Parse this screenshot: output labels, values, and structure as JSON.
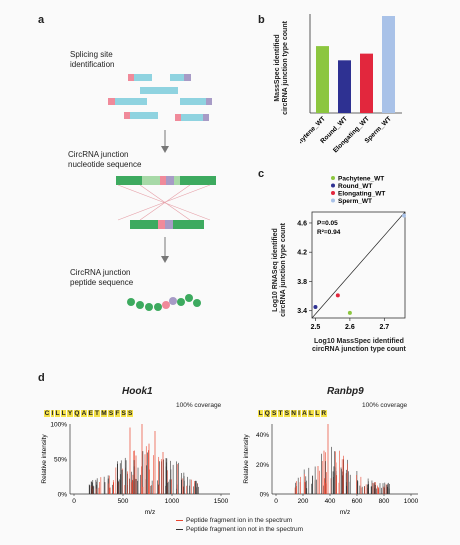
{
  "panels": {
    "a": {
      "label": "a",
      "steps": [
        "Splicing site\nidentification",
        "CircRNA junction\nnucleotide sequence",
        "CircRNA junction\npeptide sequence"
      ]
    },
    "b": {
      "label": "b",
      "chart_data": {
        "type": "bar",
        "ylabel": "MassSpec identified\ncircRNA junction type count",
        "categories": [
          "Pachytene_WT",
          "Round_WT",
          "Elongating_WT",
          "Sperm_WT"
        ],
        "values": [
          400,
          315,
          355,
          580
        ],
        "colors": [
          "#8cc63f",
          "#2e3192",
          "#e2273d",
          "#a9c2e8"
        ]
      }
    },
    "c": {
      "label": "c",
      "chart_data": {
        "type": "scatter",
        "xlabel": "Log10 MassSpec identified\ncircRNA junction type count",
        "ylabel": "Log10 RNASeq identified\ncircRNA junction type count",
        "xticks": [
          "2.5",
          "2.6",
          "2.7"
        ],
        "yticks": [
          "3.4",
          "3.8",
          "4.2",
          "4.6"
        ],
        "xlim": [
          2.49,
          2.76
        ],
        "ylim": [
          3.3,
          4.75
        ],
        "legend": [
          "Pachytene_WT",
          "Round_WT",
          "Elongating_WT",
          "Sperm_WT"
        ],
        "colors": [
          "#8cc63f",
          "#2e3192",
          "#e2273d",
          "#a9c2e8"
        ],
        "points": [
          {
            "x": 2.6,
            "y": 3.37
          },
          {
            "x": 2.5,
            "y": 3.45
          },
          {
            "x": 2.565,
            "y": 3.61
          },
          {
            "x": 2.76,
            "y": 4.7
          }
        ],
        "stats": [
          "P=0.05",
          "R²=0.94"
        ]
      }
    },
    "d": {
      "label": "d",
      "spectra": [
        {
          "title": "Hook1",
          "sequence": [
            "C",
            "I",
            "L",
            "L",
            "Y",
            "Q",
            "A",
            "E",
            "T",
            "M",
            "S",
            "F",
            "S",
            "S"
          ],
          "coverage": "100% coverage",
          "ylabel": "Relative intensity",
          "yticks": [
            "0%",
            "50%",
            "100%"
          ],
          "xticks": [
            "0",
            "500",
            "1000",
            "1500"
          ],
          "xlabel": "m/z"
        },
        {
          "title": "Ranbp9",
          "sequence": [
            "L",
            "Q",
            "S",
            "T",
            "S",
            "N",
            "I",
            "A",
            "L",
            "L",
            "R"
          ],
          "coverage": "100% coverage",
          "ylabel": "Relative intensity",
          "yticks": [
            "0%",
            "20%",
            "40%"
          ],
          "xticks": [
            "0",
            "200",
            "400",
            "600",
            "800",
            "1000"
          ],
          "xlabel": "m/z"
        }
      ],
      "legend": [
        {
          "label": "Peptide fragment ion in the spectrum",
          "color": "#e8452e"
        },
        {
          "label": "Peptide fragment ion not in the spectrum",
          "color": "#333333"
        }
      ]
    }
  }
}
